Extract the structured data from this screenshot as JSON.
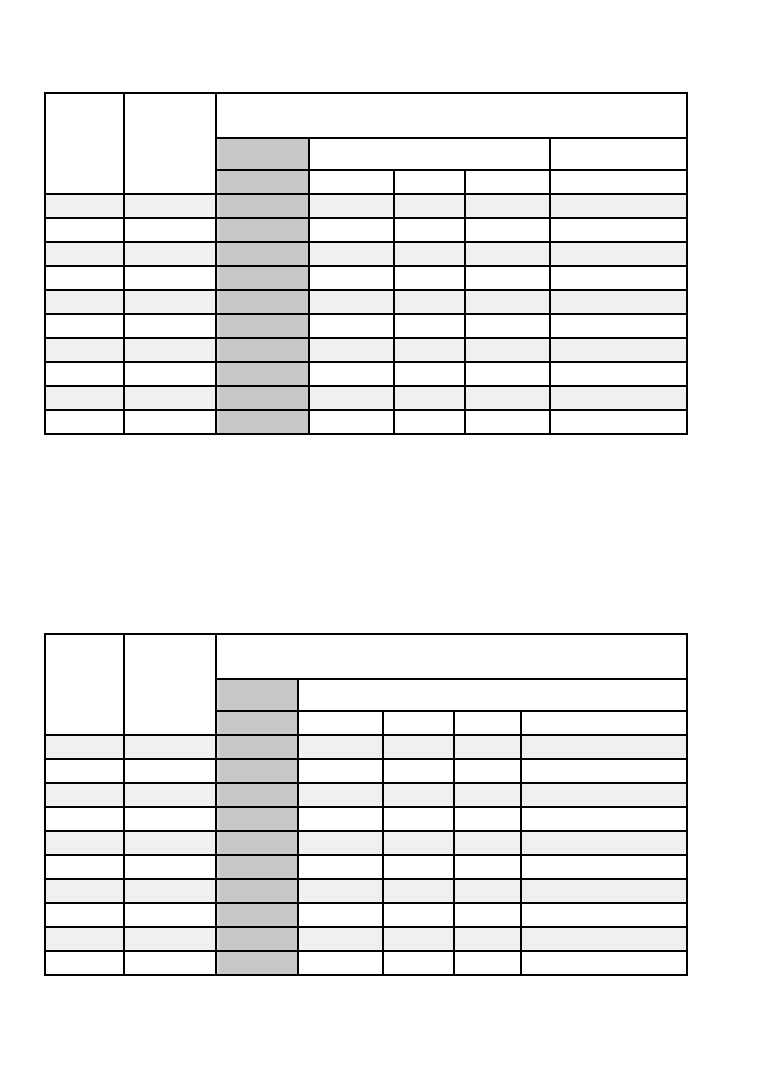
{
  "tables": [
    {
      "header": {
        "top_left": "",
        "top_second": "",
        "group": "",
        "sub_shaded": "",
        "sub_group": "",
        "sub_last": "",
        "leaf_shaded": "",
        "leaves": [
          "",
          "",
          "",
          ""
        ]
      },
      "rows": [
        [
          "",
          "",
          "",
          "",
          "",
          "",
          ""
        ],
        [
          "",
          "",
          "",
          "",
          "",
          "",
          ""
        ],
        [
          "",
          "",
          "",
          "",
          "",
          "",
          ""
        ],
        [
          "",
          "",
          "",
          "",
          "",
          "",
          ""
        ],
        [
          "",
          "",
          "",
          "",
          "",
          "",
          ""
        ],
        [
          "",
          "",
          "",
          "",
          "",
          "",
          ""
        ],
        [
          "",
          "",
          "",
          "",
          "",
          "",
          ""
        ],
        [
          "",
          "",
          "",
          "",
          "",
          "",
          ""
        ],
        [
          "",
          "",
          "",
          "",
          "",
          "",
          ""
        ],
        [
          "",
          "",
          "",
          "",
          "",
          "",
          ""
        ]
      ],
      "colors": {
        "shaded_column": "#c8c8c8",
        "alt_row": "#f0f0f0"
      }
    },
    {
      "header": {
        "top_left": "",
        "top_second": "",
        "group": "",
        "sub_shaded": "",
        "sub_group": "",
        "leaf_shaded": "",
        "leaves": [
          "",
          "",
          "",
          ""
        ]
      },
      "rows": [
        [
          "",
          "",
          "",
          "",
          "",
          "",
          ""
        ],
        [
          "",
          "",
          "",
          "",
          "",
          "",
          ""
        ],
        [
          "",
          "",
          "",
          "",
          "",
          "",
          ""
        ],
        [
          "",
          "",
          "",
          "",
          "",
          "",
          ""
        ],
        [
          "",
          "",
          "",
          "",
          "",
          "",
          ""
        ],
        [
          "",
          "",
          "",
          "",
          "",
          "",
          ""
        ],
        [
          "",
          "",
          "",
          "",
          "",
          "",
          ""
        ],
        [
          "",
          "",
          "",
          "",
          "",
          "",
          ""
        ],
        [
          "",
          "",
          "",
          "",
          "",
          "",
          ""
        ],
        [
          "",
          "",
          "",
          "",
          "",
          "",
          ""
        ]
      ],
      "colors": {
        "shaded_column": "#c8c8c8",
        "alt_row": "#f0f0f0"
      }
    }
  ]
}
